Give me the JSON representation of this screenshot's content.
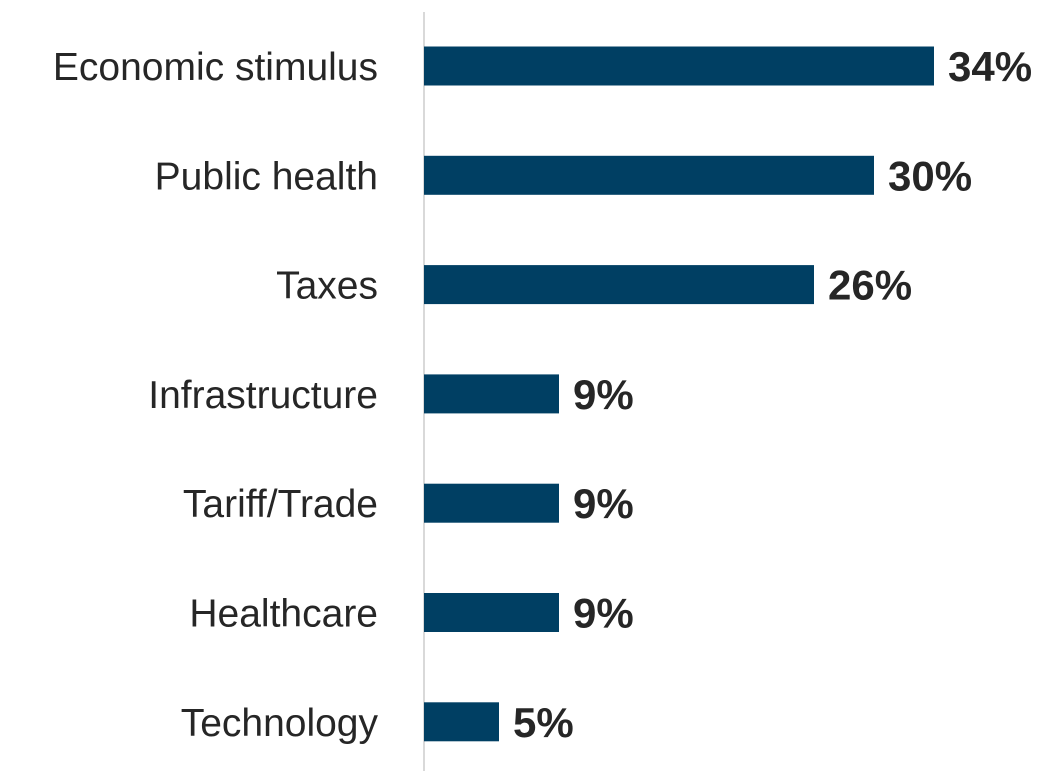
{
  "chart_data": {
    "type": "bar",
    "orientation": "horizontal",
    "categories": [
      "Economic stimulus",
      "Public health",
      "Taxes",
      "Infrastructure",
      "Tariff/Trade",
      "Healthcare",
      "Technology"
    ],
    "values": [
      34,
      30,
      26,
      9,
      9,
      9,
      5
    ],
    "value_labels": [
      "34%",
      "30%",
      "26%",
      "9%",
      "9%",
      "9%",
      "5%"
    ],
    "xlim": [
      0,
      34
    ],
    "grid": false,
    "legend": "none",
    "title": "",
    "xlabel": "",
    "ylabel": ""
  },
  "colors": {
    "bar": "#003f63",
    "axis": "#d9d9d9",
    "text": "#262626"
  }
}
